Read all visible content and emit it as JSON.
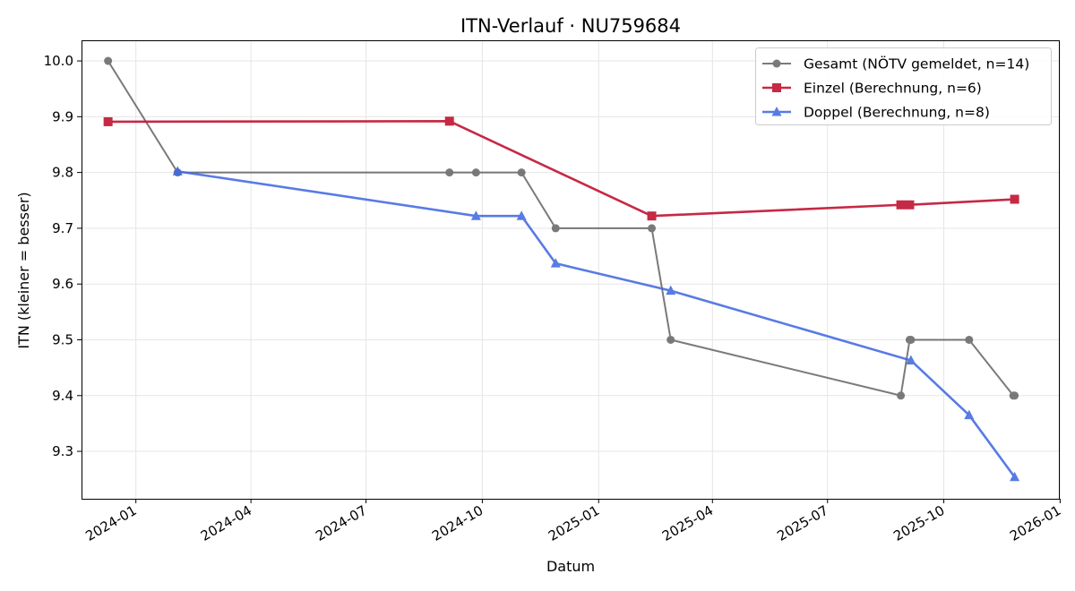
{
  "chart_data": {
    "type": "line",
    "title": "ITN-Verlauf · NU759684",
    "xlabel": "Datum",
    "ylabel": "ITN  (kleiner = besser)",
    "x_axis": "date",
    "xlim": [
      "2023-11-19",
      "2025-12-31"
    ],
    "ylim": [
      9.215,
      10.037
    ],
    "x_ticks": [
      "2024-01",
      "2024-04",
      "2024-07",
      "2024-10",
      "2025-01",
      "2025-04",
      "2025-07",
      "2025-10",
      "2026-01"
    ],
    "y_ticks": [
      9.3,
      9.4,
      9.5,
      9.6,
      9.7,
      9.8,
      9.9,
      10.0
    ],
    "grid": true,
    "legend_position": "top-right",
    "series": [
      {
        "name": "Gesamt (NÖTV gemeldet, n=14)",
        "color": "#555555",
        "marker": "circle",
        "points": [
          {
            "x": "2023-12-10",
            "y": 10.0
          },
          {
            "x": "2024-02-03",
            "y": 9.8
          },
          {
            "x": "2024-09-05",
            "y": 9.8
          },
          {
            "x": "2024-09-26",
            "y": 9.8
          },
          {
            "x": "2024-11-01",
            "y": 9.8
          },
          {
            "x": "2024-11-28",
            "y": 9.7
          },
          {
            "x": "2025-02-12",
            "y": 9.7
          },
          {
            "x": "2025-02-27",
            "y": 9.5
          },
          {
            "x": "2025-08-28",
            "y": 9.4
          },
          {
            "x": "2025-09-04",
            "y": 9.5
          },
          {
            "x": "2025-09-05",
            "y": 9.5
          },
          {
            "x": "2025-10-21",
            "y": 9.5
          },
          {
            "x": "2025-11-25",
            "y": 9.4
          },
          {
            "x": "2025-11-26",
            "y": 9.4
          }
        ]
      },
      {
        "name": "Einzel (Berechnung, n=6)",
        "color": "#c41e3a",
        "marker": "square",
        "points": [
          {
            "x": "2023-12-10",
            "y": 9.891
          },
          {
            "x": "2024-09-05",
            "y": 9.892
          },
          {
            "x": "2025-02-12",
            "y": 9.722
          },
          {
            "x": "2025-08-28",
            "y": 9.742
          },
          {
            "x": "2025-09-04",
            "y": 9.742
          },
          {
            "x": "2025-11-26",
            "y": 9.752
          }
        ]
      },
      {
        "name": "Doppel (Berechnung, n=8)",
        "color": "#4169e1",
        "marker": "triangle",
        "points": [
          {
            "x": "2024-02-03",
            "y": 9.802
          },
          {
            "x": "2024-09-26",
            "y": 9.722
          },
          {
            "x": "2024-11-01",
            "y": 9.722
          },
          {
            "x": "2024-11-28",
            "y": 9.637
          },
          {
            "x": "2025-02-27",
            "y": 9.588
          },
          {
            "x": "2025-09-05",
            "y": 9.463
          },
          {
            "x": "2025-10-21",
            "y": 9.365
          },
          {
            "x": "2025-11-26",
            "y": 9.254
          }
        ]
      }
    ]
  }
}
